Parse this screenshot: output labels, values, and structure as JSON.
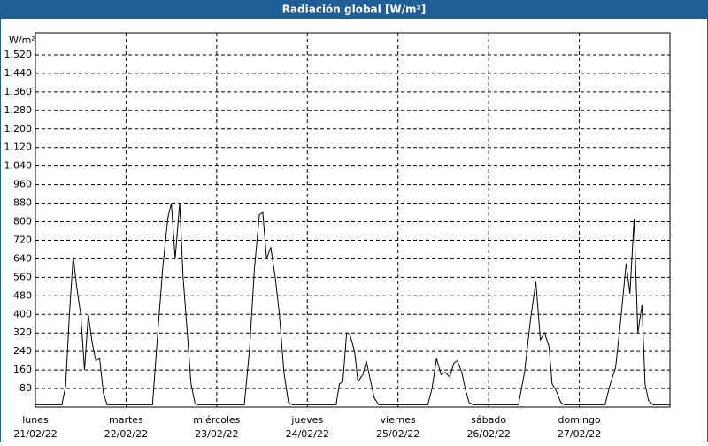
{
  "chart_data": {
    "type": "line",
    "title": "Radiación global [W/m²]",
    "y_label": "W/m²",
    "xlim": [
      0,
      168
    ],
    "ylim": [
      0,
      1600
    ],
    "xticks": [
      {
        "value": 0,
        "label": "lunes",
        "date": "21/02/22"
      },
      {
        "value": 24,
        "label": "martes",
        "date": "22/02/22"
      },
      {
        "value": 48,
        "label": "miércoles",
        "date": "23/02/22"
      },
      {
        "value": 72,
        "label": "jueves",
        "date": "24/02/22"
      },
      {
        "value": 96,
        "label": "viernes",
        "date": "25/02/22"
      },
      {
        "value": 120,
        "label": "sábado",
        "date": "26/02/22"
      },
      {
        "value": 144,
        "label": "domingo",
        "date": "27/02/22"
      }
    ],
    "yticks": [
      80,
      160,
      240,
      320,
      400,
      480,
      560,
      640,
      720,
      800,
      880,
      960,
      {
        "value": 1040,
        "label": "1.040"
      },
      {
        "value": 1120,
        "label": "1.120"
      },
      {
        "value": 1200,
        "label": "1.200"
      },
      {
        "value": 1280,
        "label": "1.280"
      },
      {
        "value": 1360,
        "label": "1.360"
      },
      {
        "value": 1440,
        "label": "1.440"
      },
      {
        "value": 1520,
        "label": "1.520"
      }
    ],
    "grid": true,
    "series": [
      {
        "color": "#000000",
        "x": [
          0,
          7,
          8,
          9,
          10,
          11,
          12,
          13,
          14,
          15,
          16,
          17,
          18,
          19,
          31,
          32.3,
          33.7,
          35.1,
          36,
          37,
          38.2,
          39.1,
          40.3,
          41.2,
          42.2,
          43,
          55.3,
          56.7,
          58,
          59.3,
          60.2,
          61.2,
          62.3,
          63.5,
          64.6,
          65.8,
          67,
          68,
          79.6,
          80.5,
          81.4,
          82.4,
          83.3,
          84.5,
          85.4,
          86.7,
          87.6,
          88.5,
          89.7,
          90.9,
          103.9,
          105,
          106.2,
          107.4,
          108.5,
          109.7,
          110.8,
          111.7,
          112.9,
          113.8,
          114.8,
          116,
          127.9,
          129.5,
          131.1,
          132.5,
          133.7,
          134.8,
          136,
          136.8,
          137.9,
          139.1,
          140,
          150.8,
          152.2,
          153.6,
          155,
          156.4,
          157.4,
          158.5,
          159.5,
          160.6,
          161.4,
          162.3,
          163.5,
          168
        ],
        "values": [
          10,
          10,
          90,
          400,
          650,
          510,
          400,
          160,
          400,
          280,
          200,
          210,
          60,
          10,
          10,
          300,
          600,
          820,
          880,
          640,
          880,
          560,
          300,
          100,
          20,
          10,
          10,
          250,
          600,
          830,
          840,
          640,
          690,
          560,
          400,
          150,
          20,
          10,
          10,
          100,
          110,
          320,
          310,
          240,
          110,
          140,
          200,
          130,
          40,
          10,
          10,
          80,
          210,
          140,
          150,
          130,
          190,
          200,
          150,
          80,
          20,
          10,
          10,
          150,
          380,
          540,
          290,
          320,
          260,
          100,
          70,
          20,
          10,
          10,
          100,
          170,
          380,
          620,
          490,
          810,
          320,
          440,
          100,
          30,
          10,
          10
        ]
      }
    ]
  }
}
